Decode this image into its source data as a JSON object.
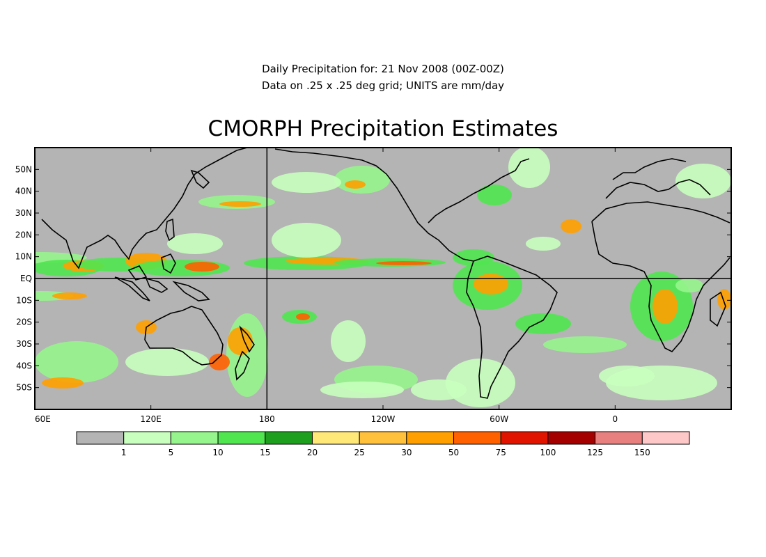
{
  "header": {
    "line1": "Daily Precipitation for: 21 Nov 2008 (00Z-00Z)",
    "line2": "Data on .25 x .25 deg grid; UNITS are mm/day",
    "title": "CMORPH Precipitation Estimates"
  },
  "map": {
    "lat_labels": [
      "50N",
      "40N",
      "30N",
      "20N",
      "10N",
      "EQ",
      "10S",
      "20S",
      "30S",
      "40S",
      "50S"
    ],
    "lat_values": [
      50,
      40,
      30,
      20,
      10,
      0,
      -10,
      -20,
      -30,
      -40,
      -50
    ],
    "lon_labels": [
      "60E",
      "120E",
      "180",
      "120W",
      "60W",
      "0"
    ],
    "lon_values": [
      60,
      120,
      180,
      240,
      300,
      360
    ],
    "lon_range": [
      60,
      420
    ],
    "lat_range": [
      -60,
      60
    ],
    "background_color": "#b4b4b4"
  },
  "colorbar": {
    "labels": [
      "1",
      "5",
      "10",
      "15",
      "20",
      "25",
      "30",
      "50",
      "75",
      "100",
      "125",
      "150"
    ],
    "colors": [
      "#b4b4b4",
      "#c8ffbe",
      "#96f58c",
      "#50e650",
      "#1ea01e",
      "#ffe878",
      "#ffc03c",
      "#ffa000",
      "#ff6000",
      "#e11400",
      "#a50000",
      "#e88080",
      "#ffc8c8"
    ]
  }
}
